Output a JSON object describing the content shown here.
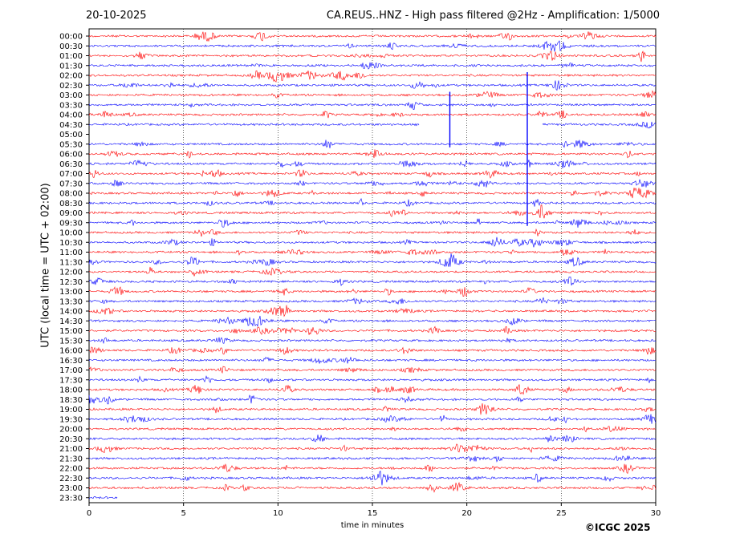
{
  "header": {
    "date": "20-10-2025",
    "title": "CA.REUS..HNZ - High pass filtered @2Hz - Amplification: 1/5000"
  },
  "footer": {
    "copyright": "©ICGC 2025"
  },
  "colors": {
    "trace_a": "#ff0000",
    "trace_b": "#0000ff",
    "grid": "#000000"
  },
  "chart_data": {
    "type": "line",
    "chart_kind": "helicorder",
    "xlabel": "time in minutes",
    "ylabel": "UTC (local time = UTC + 02:00)",
    "xlim": [
      0,
      30
    ],
    "xticks": [
      0,
      5,
      10,
      15,
      20,
      25,
      30
    ],
    "grid": "vertical dotted at 5 min intervals",
    "row_labels": [
      "00:00",
      "00:30",
      "01:00",
      "01:30",
      "02:00",
      "02:30",
      "03:00",
      "03:30",
      "04:00",
      "04:30",
      "05:00",
      "05:30",
      "06:00",
      "06:30",
      "07:00",
      "07:30",
      "08:00",
      "08:30",
      "09:00",
      "09:30",
      "10:00",
      "10:30",
      "11:00",
      "11:30",
      "12:00",
      "12:30",
      "13:00",
      "13:30",
      "14:00",
      "14:30",
      "15:00",
      "15:30",
      "16:00",
      "16:30",
      "17:00",
      "17:30",
      "18:00",
      "18:30",
      "19:00",
      "19:30",
      "20:00",
      "20:30",
      "21:00",
      "21:30",
      "22:00",
      "22:30",
      "23:00",
      "23:30"
    ],
    "row_colors": [
      "red",
      "blue"
    ],
    "data_gaps": [
      {
        "row": "04:30",
        "from_min": 17.5,
        "to_min": 24.0
      },
      {
        "row": "05:00",
        "from_min": 0.0,
        "to_min": 30.0
      },
      {
        "row": "23:30",
        "from_min": 1.5,
        "to_min": 30.0
      }
    ],
    "spikes": [
      {
        "minute": 19.1,
        "rows": [
          "03:00",
          "05:30"
        ]
      },
      {
        "minute": 23.2,
        "rows": [
          "02:00",
          "09:30"
        ]
      }
    ]
  }
}
